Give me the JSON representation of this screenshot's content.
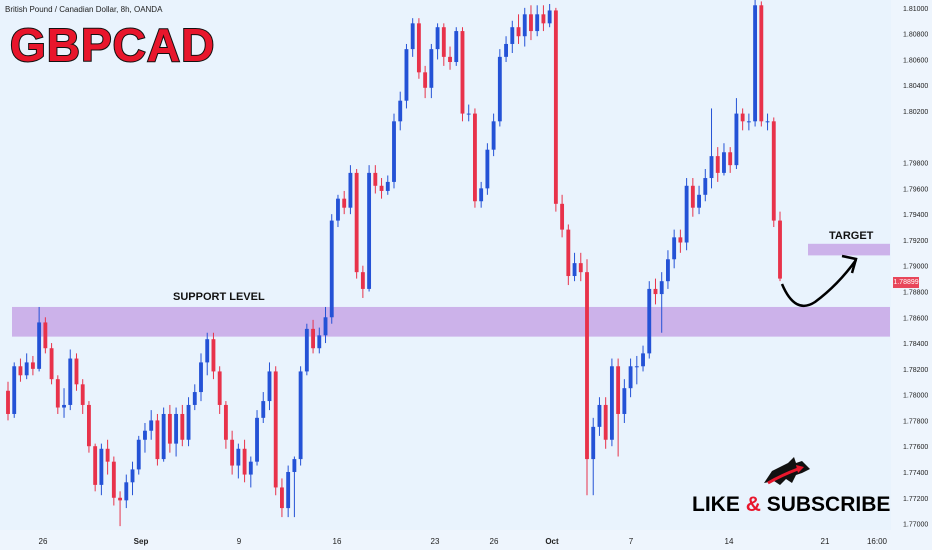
{
  "header": {
    "symbol_info": "British Pound / Canadian Dollar, 8h, OANDA",
    "pair_title": "GBPCAD"
  },
  "annotations": {
    "support_label": "SUPPORT LEVEL",
    "target_label": "TARGET",
    "like": "LIKE",
    "amp": "&",
    "subscribe": "SUBSCRIBE"
  },
  "colors": {
    "background": "#e9f3fd",
    "bullish": "#2452d6",
    "bearish": "#e8324a",
    "zone": "#c7a6e6",
    "title": "#e8162c"
  },
  "chart_data": {
    "type": "candlestick",
    "title": "",
    "y_ticks": [
      "1.81000",
      "1.80800",
      "1.80600",
      "1.80400",
      "1.80200",
      "1.79800",
      "1.79600",
      "1.79400",
      "1.79200",
      "1.79000",
      "1.78800",
      "1.78600",
      "1.78400",
      "1.78200",
      "1.78000",
      "1.77800",
      "1.77600",
      "1.77400",
      "1.77200",
      "1.77000"
    ],
    "x_ticks": [
      "26",
      "Sep",
      "9",
      "16",
      "23",
      "26",
      "Oct",
      "7",
      "14",
      "21",
      "16:00"
    ],
    "last_price": "1.78899",
    "ylim": [
      1.7695,
      1.8103
    ],
    "support_zone": [
      1.7845,
      1.7868
    ],
    "target_zone": [
      1.7908,
      1.7917
    ],
    "candles": [
      [
        1.7803,
        1.7785,
        1.781,
        1.778
      ],
      [
        1.7785,
        1.7822,
        1.7825,
        1.7782
      ],
      [
        1.7822,
        1.7815,
        1.7828,
        1.781
      ],
      [
        1.7815,
        1.7825,
        1.7832,
        1.7812
      ],
      [
        1.7825,
        1.782,
        1.783,
        1.7815
      ],
      [
        1.782,
        1.7856,
        1.7868,
        1.7818
      ],
      [
        1.7856,
        1.7836,
        1.786,
        1.7832
      ],
      [
        1.7836,
        1.7812,
        1.784,
        1.7808
      ],
      [
        1.7812,
        1.779,
        1.7815,
        1.7785
      ],
      [
        1.779,
        1.7792,
        1.7805,
        1.7782
      ],
      [
        1.7792,
        1.7828,
        1.7835,
        1.7788
      ],
      [
        1.7828,
        1.7808,
        1.7832,
        1.7803
      ],
      [
        1.7808,
        1.7792,
        1.7812,
        1.7785
      ],
      [
        1.7792,
        1.776,
        1.7795,
        1.7755
      ],
      [
        1.776,
        1.773,
        1.7762,
        1.7725
      ],
      [
        1.773,
        1.7758,
        1.7762,
        1.7722
      ],
      [
        1.7758,
        1.7748,
        1.7765,
        1.7738
      ],
      [
        1.7748,
        1.772,
        1.7752,
        1.7714
      ],
      [
        1.772,
        1.7718,
        1.7725,
        1.7698
      ],
      [
        1.7718,
        1.7732,
        1.7738,
        1.7712
      ],
      [
        1.7732,
        1.7742,
        1.7748,
        1.7722
      ],
      [
        1.7742,
        1.7765,
        1.7768,
        1.7738
      ],
      [
        1.7765,
        1.7772,
        1.7778,
        1.7755
      ],
      [
        1.7772,
        1.778,
        1.7788,
        1.7765
      ],
      [
        1.778,
        1.775,
        1.7785,
        1.7745
      ],
      [
        1.775,
        1.7785,
        1.779,
        1.7748
      ],
      [
        1.7785,
        1.7762,
        1.7792,
        1.7755
      ],
      [
        1.7762,
        1.7785,
        1.779,
        1.7752
      ],
      [
        1.7785,
        1.7765,
        1.7792,
        1.776
      ],
      [
        1.7765,
        1.7792,
        1.7798,
        1.776
      ],
      [
        1.7792,
        1.7802,
        1.7808,
        1.7788
      ],
      [
        1.7802,
        1.7825,
        1.7832,
        1.7795
      ],
      [
        1.7825,
        1.7843,
        1.7848,
        1.7815
      ],
      [
        1.7843,
        1.7818,
        1.7848,
        1.7812
      ],
      [
        1.7818,
        1.7792,
        1.7822,
        1.7785
      ],
      [
        1.7792,
        1.7765,
        1.7795,
        1.7758
      ],
      [
        1.7765,
        1.7745,
        1.7772,
        1.7738
      ],
      [
        1.7745,
        1.7758,
        1.7762,
        1.7735
      ],
      [
        1.7758,
        1.7738,
        1.7765,
        1.7732
      ],
      [
        1.7738,
        1.7748,
        1.7752,
        1.7728
      ],
      [
        1.7748,
        1.7782,
        1.7788,
        1.7745
      ],
      [
        1.7782,
        1.7795,
        1.7802,
        1.7778
      ],
      [
        1.7795,
        1.7818,
        1.7825,
        1.7788
      ],
      [
        1.7818,
        1.7728,
        1.7822,
        1.7722
      ],
      [
        1.7728,
        1.7712,
        1.7735,
        1.7705
      ],
      [
        1.7712,
        1.774,
        1.7745,
        1.7705
      ],
      [
        1.774,
        1.775,
        1.7752,
        1.7705
      ],
      [
        1.775,
        1.7818,
        1.7822,
        1.7745
      ],
      [
        1.7818,
        1.7851,
        1.7855,
        1.7815
      ],
      [
        1.7851,
        1.7836,
        1.7858,
        1.7832
      ],
      [
        1.7836,
        1.7846,
        1.7852,
        1.7832
      ],
      [
        1.7846,
        1.786,
        1.7868,
        1.784
      ],
      [
        1.786,
        1.7935,
        1.794,
        1.7855
      ],
      [
        1.7935,
        1.7952,
        1.7955,
        1.793
      ],
      [
        1.7952,
        1.7945,
        1.7958,
        1.794
      ],
      [
        1.7945,
        1.7972,
        1.7978,
        1.794
      ],
      [
        1.7972,
        1.7895,
        1.7975,
        1.789
      ],
      [
        1.7895,
        1.7882,
        1.79,
        1.7875
      ],
      [
        1.7882,
        1.7972,
        1.7978,
        1.788
      ],
      [
        1.7972,
        1.7962,
        1.7978,
        1.7956
      ],
      [
        1.7962,
        1.7958,
        1.7968,
        1.7952
      ],
      [
        1.7958,
        1.7965,
        1.797,
        1.7955
      ],
      [
        1.7965,
        1.8012,
        1.8018,
        1.796
      ],
      [
        1.8012,
        1.8028,
        1.8035,
        1.8005
      ],
      [
        1.8028,
        1.8068,
        1.8072,
        1.8022
      ],
      [
        1.8068,
        1.8088,
        1.8092,
        1.8062
      ],
      [
        1.8088,
        1.805,
        1.8092,
        1.8045
      ],
      [
        1.805,
        1.8038,
        1.8055,
        1.803
      ],
      [
        1.8038,
        1.8068,
        1.8072,
        1.803
      ],
      [
        1.8068,
        1.8085,
        1.8088,
        1.806
      ],
      [
        1.8085,
        1.8062,
        1.8088,
        1.8055
      ],
      [
        1.8062,
        1.8058,
        1.807,
        1.8052
      ],
      [
        1.8058,
        1.8082,
        1.8085,
        1.8055
      ],
      [
        1.8082,
        1.8018,
        1.8085,
        1.8012
      ],
      [
        1.8018,
        1.8018,
        1.8025,
        1.8012
      ],
      [
        1.8018,
        1.795,
        1.8022,
        1.7945
      ],
      [
        1.795,
        1.796,
        1.7965,
        1.7945
      ],
      [
        1.796,
        1.799,
        1.7995,
        1.7955
      ],
      [
        1.799,
        1.8012,
        1.8018,
        1.7985
      ],
      [
        1.8012,
        1.8062,
        1.8068,
        1.8008
      ],
      [
        1.8062,
        1.8072,
        1.8078,
        1.8058
      ],
      [
        1.8072,
        1.8085,
        1.809,
        1.8065
      ],
      [
        1.8085,
        1.8078,
        1.8095,
        1.8072
      ],
      [
        1.8078,
        1.8095,
        1.81,
        1.807
      ],
      [
        1.8095,
        1.8082,
        1.8102,
        1.8075
      ],
      [
        1.8082,
        1.8095,
        1.8102,
        1.8078
      ],
      [
        1.8095,
        1.8088,
        1.8102,
        1.8082
      ],
      [
        1.8088,
        1.8098,
        1.8103,
        1.8085
      ],
      [
        1.8098,
        1.7948,
        1.81,
        1.7942
      ],
      [
        1.7948,
        1.7928,
        1.7955,
        1.7922
      ],
      [
        1.7928,
        1.7892,
        1.7932,
        1.7885
      ],
      [
        1.7892,
        1.7902,
        1.791,
        1.7888
      ],
      [
        1.7902,
        1.7895,
        1.791,
        1.7888
      ],
      [
        1.7895,
        1.775,
        1.7905,
        1.7722
      ],
      [
        1.775,
        1.7775,
        1.7782,
        1.7722
      ],
      [
        1.7775,
        1.7792,
        1.7798,
        1.7768
      ],
      [
        1.7792,
        1.7765,
        1.7798,
        1.7758
      ],
      [
        1.7765,
        1.7822,
        1.7828,
        1.776
      ],
      [
        1.7822,
        1.7785,
        1.7828,
        1.7752
      ],
      [
        1.7785,
        1.7805,
        1.7812,
        1.7778
      ],
      [
        1.7805,
        1.7822,
        1.7828,
        1.7798
      ],
      [
        1.7822,
        1.7822,
        1.783,
        1.7808
      ],
      [
        1.7822,
        1.7832,
        1.7838,
        1.7818
      ],
      [
        1.7832,
        1.7882,
        1.7888,
        1.7828
      ],
      [
        1.7882,
        1.7878,
        1.789,
        1.787
      ],
      [
        1.7878,
        1.7888,
        1.7895,
        1.7848
      ],
      [
        1.7888,
        1.7905,
        1.7912,
        1.7882
      ],
      [
        1.7905,
        1.7922,
        1.7928,
        1.7898
      ],
      [
        1.7922,
        1.7918,
        1.7928,
        1.791
      ],
      [
        1.7918,
        1.7962,
        1.7968,
        1.7912
      ],
      [
        1.7962,
        1.7945,
        1.7968,
        1.7938
      ],
      [
        1.7945,
        1.7955,
        1.7962,
        1.794
      ],
      [
        1.7955,
        1.7968,
        1.7975,
        1.795
      ],
      [
        1.7968,
        1.7985,
        1.8022,
        1.796
      ],
      [
        1.7985,
        1.7972,
        1.7992,
        1.7965
      ],
      [
        1.7972,
        1.7988,
        1.7995,
        1.797
      ],
      [
        1.7988,
        1.7978,
        1.7992,
        1.7972
      ],
      [
        1.7978,
        1.8018,
        1.803,
        1.7975
      ],
      [
        1.8018,
        1.8012,
        1.8022,
        1.8005
      ],
      [
        1.8012,
        1.8012,
        1.8018,
        1.8005
      ],
      [
        1.8012,
        1.8102,
        1.8108,
        1.8008
      ],
      [
        1.8102,
        1.8012,
        1.8105,
        1.8008
      ],
      [
        1.8012,
        1.8012,
        1.8018,
        1.8005
      ],
      [
        1.8012,
        1.7935,
        1.8015,
        1.793
      ],
      [
        1.7935,
        1.789,
        1.7942,
        1.7888
      ]
    ]
  }
}
